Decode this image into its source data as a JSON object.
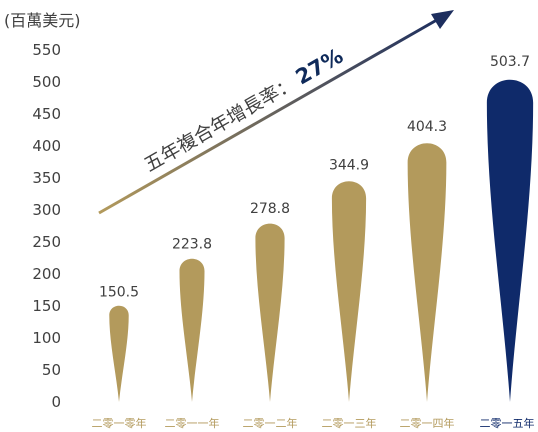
{
  "chart_data": {
    "type": "bar",
    "unit_label": "(百萬美元)",
    "categories": [
      "二零一零年",
      "二零一一年",
      "二零一二年",
      "二零一三年",
      "二零一四年",
      "二零一五年"
    ],
    "values": [
      150.5,
      223.8,
      278.8,
      344.9,
      404.3,
      503.7
    ],
    "value_labels": [
      "150.5",
      "223.8",
      "278.8",
      "344.9",
      "404.3",
      "503.7"
    ],
    "yticks": [
      "0",
      "50",
      "100",
      "150",
      "200",
      "250",
      "300",
      "350",
      "400",
      "450",
      "500",
      "550"
    ],
    "ylim": [
      0,
      550
    ],
    "grid": false,
    "colors": {
      "gold": "#b39a5c",
      "navy": "#0f2a6a",
      "arrow_start": "#b39a5c",
      "arrow_end": "#1d2e5e"
    },
    "highlight_index": 5,
    "annotation": {
      "text": "五年複合年增長率：",
      "value": "27%"
    }
  }
}
